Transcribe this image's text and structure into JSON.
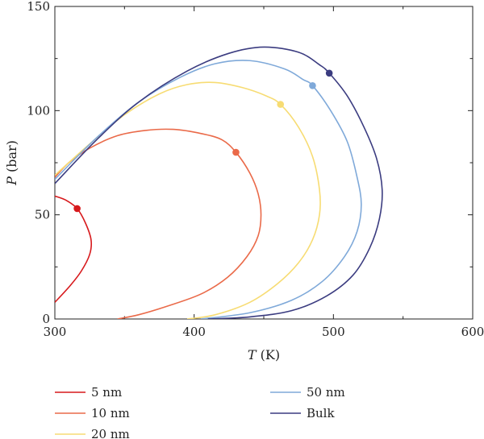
{
  "chart_data": {
    "type": "line",
    "xlabel_var": "T",
    "xlabel_unit": "(K)",
    "ylabel_var": "P",
    "ylabel_unit": "(bar)",
    "xlim": [
      300,
      600
    ],
    "ylim": [
      0,
      150
    ],
    "xticks": [
      300,
      400,
      500,
      600
    ],
    "yticks": [
      0,
      50,
      100,
      150
    ],
    "grid": false,
    "legend_position": "bottom",
    "series": [
      {
        "name": "5 nm",
        "color": "#d7191c",
        "critical_point": [
          316,
          53
        ],
        "points": [
          [
            300,
            59
          ],
          [
            308,
            57
          ],
          [
            316,
            53
          ],
          [
            322,
            46
          ],
          [
            326,
            38
          ],
          [
            325,
            31
          ],
          [
            319,
            23
          ],
          [
            311,
            16
          ],
          [
            300,
            8
          ]
        ]
      },
      {
        "name": "10 nm",
        "color": "#ea6a49",
        "critical_point": [
          430,
          80
        ],
        "points": [
          [
            300,
            68
          ],
          [
            310,
            75
          ],
          [
            325,
            82
          ],
          [
            345,
            88
          ],
          [
            365,
            90.5
          ],
          [
            385,
            91
          ],
          [
            405,
            89
          ],
          [
            420,
            86
          ],
          [
            430,
            80
          ],
          [
            440,
            70
          ],
          [
            446,
            60
          ],
          [
            448,
            50
          ],
          [
            446,
            40
          ],
          [
            438,
            30
          ],
          [
            424,
            20
          ],
          [
            405,
            12
          ],
          [
            380,
            6
          ],
          [
            360,
            2
          ],
          [
            345,
            0
          ]
        ]
      },
      {
        "name": "20 nm",
        "color": "#f7dc73",
        "critical_point": [
          462,
          103
        ],
        "points": [
          [
            300,
            69
          ],
          [
            325,
            84
          ],
          [
            350,
            98
          ],
          [
            375,
            108
          ],
          [
            395,
            112.5
          ],
          [
            415,
            113.5
          ],
          [
            435,
            111
          ],
          [
            452,
            107
          ],
          [
            462,
            103
          ],
          [
            475,
            92
          ],
          [
            485,
            78
          ],
          [
            490,
            62
          ],
          [
            490,
            50
          ],
          [
            485,
            38
          ],
          [
            475,
            27
          ],
          [
            460,
            17
          ],
          [
            440,
            8
          ],
          [
            415,
            2
          ],
          [
            395,
            0
          ]
        ]
      },
      {
        "name": "50 nm",
        "color": "#7fa9d9",
        "critical_point": [
          485,
          112
        ],
        "points": [
          [
            300,
            67
          ],
          [
            330,
            87
          ],
          [
            360,
            104
          ],
          [
            390,
            116
          ],
          [
            415,
            122.5
          ],
          [
            440,
            124
          ],
          [
            465,
            120
          ],
          [
            478,
            115
          ],
          [
            485,
            112
          ],
          [
            498,
            100
          ],
          [
            510,
            85
          ],
          [
            517,
            68
          ],
          [
            520,
            55
          ],
          [
            517,
            42
          ],
          [
            508,
            30
          ],
          [
            492,
            18
          ],
          [
            470,
            9
          ],
          [
            440,
            3
          ],
          [
            405,
            0
          ]
        ]
      },
      {
        "name": "Bulk",
        "color": "#3b3c80",
        "critical_point": [
          497,
          118
        ],
        "points": [
          [
            300,
            65
          ],
          [
            330,
            86
          ],
          [
            360,
            104
          ],
          [
            395,
            119
          ],
          [
            425,
            127.5
          ],
          [
            450,
            130.5
          ],
          [
            475,
            128
          ],
          [
            490,
            122
          ],
          [
            497,
            118
          ],
          [
            510,
            107
          ],
          [
            522,
            92
          ],
          [
            531,
            77
          ],
          [
            535,
            62
          ],
          [
            533,
            48
          ],
          [
            526,
            34
          ],
          [
            514,
            21
          ],
          [
            495,
            11
          ],
          [
            470,
            4
          ],
          [
            440,
            1
          ],
          [
            410,
            0
          ]
        ]
      }
    ]
  }
}
